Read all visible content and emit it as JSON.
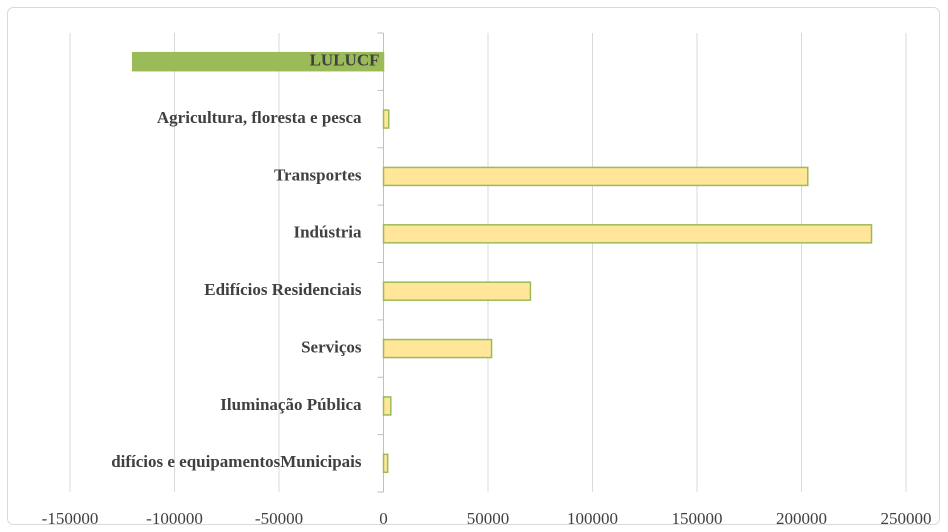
{
  "chart_data": {
    "type": "bar",
    "orientation": "horizontal",
    "categories": [
      "LULUCF",
      "Agricultura, floresta e pesca",
      "Transportes",
      "Indústria",
      "Edifícios Residenciais",
      "Serviços",
      "Iluminação Pública",
      "difícios e equipamentosMunicipais"
    ],
    "values": [
      -120000,
      2500,
      203000,
      233500,
      70300,
      51700,
      3500,
      2000
    ],
    "colors": [
      "#9bbb59",
      "#ffe699",
      "#ffe699",
      "#ffe699",
      "#ffe699",
      "#ffe699",
      "#ffe699",
      "#ffe699"
    ],
    "edgecolor": "#9bbb59",
    "xlim": [
      -150000,
      250000
    ],
    "xticks": [
      -150000,
      -100000,
      -50000,
      0,
      50000,
      100000,
      150000,
      200000,
      250000
    ],
    "grid": true
  }
}
